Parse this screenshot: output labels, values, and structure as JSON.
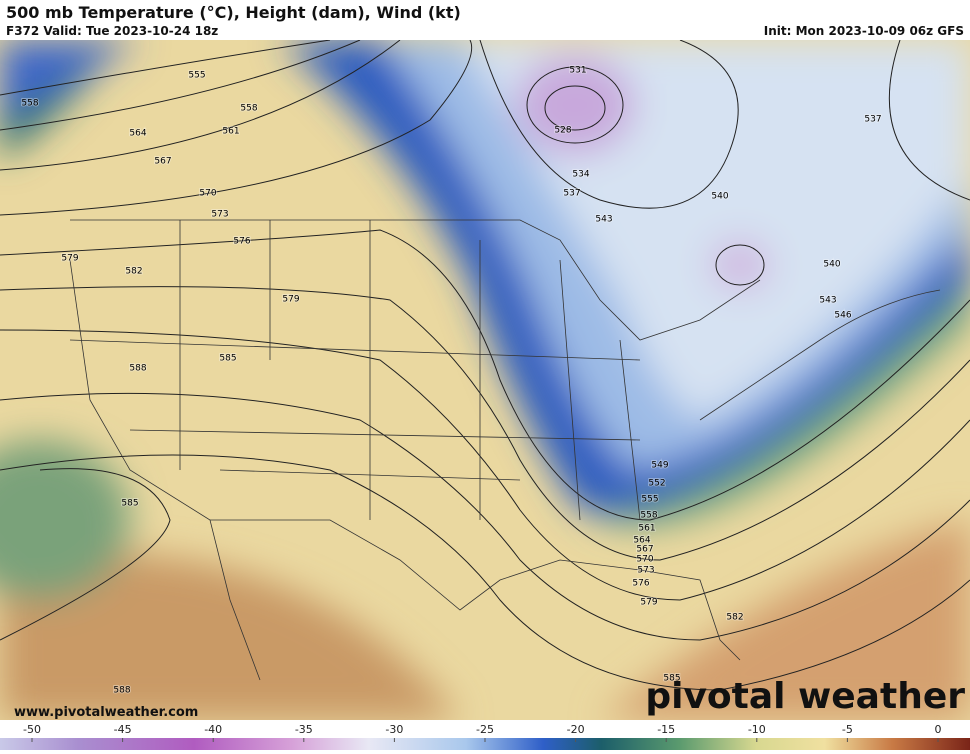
{
  "header": {
    "title": "500 mb Temperature (°C), Height (dam), Wind (kt)",
    "valid": "F372 Valid: Tue 2023-10-24 18z",
    "init": "Init: Mon 2023-10-09 06z GFS"
  },
  "map": {
    "contour_labels": [
      "531",
      "528",
      "534",
      "537",
      "543",
      "540",
      "537",
      "540",
      "543",
      "546",
      "555",
      "558",
      "558",
      "561",
      "564",
      "567",
      "570",
      "573",
      "576",
      "579",
      "582",
      "579",
      "585",
      "588",
      "585",
      "588",
      "549",
      "552",
      "555",
      "558",
      "561",
      "564",
      "567",
      "570",
      "573",
      "576",
      "579",
      "582",
      "585"
    ]
  },
  "watermark": "pivotal weather",
  "website": "www.pivotalweather.com",
  "colorbar": {
    "ticks": [
      -50,
      -45,
      -40,
      -35,
      -30,
      -25,
      -20,
      -15,
      -10,
      -5,
      0
    ]
  }
}
